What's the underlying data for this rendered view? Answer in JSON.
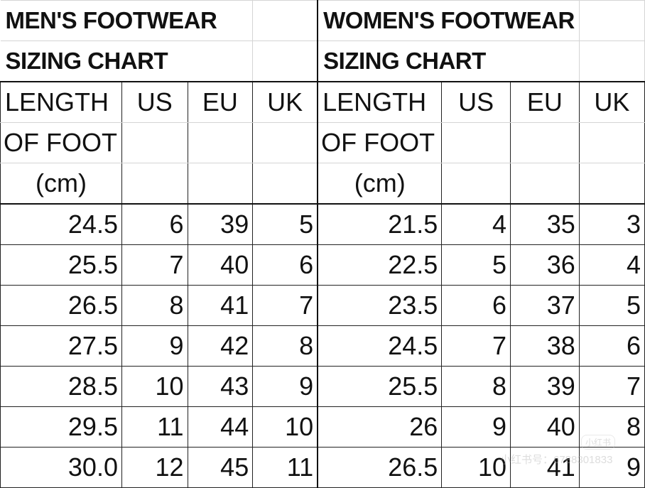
{
  "men": {
    "title_line1": "MEN'S FOOTWEAR",
    "title_line2": "SIZING CHART",
    "headers": {
      "length_line1": "LENGTH",
      "length_line2": "OF FOOT",
      "length_line3": "(cm)",
      "us": "US",
      "eu": "EU",
      "uk": "UK"
    },
    "rows": [
      [
        "24.5",
        "6",
        "39",
        "5"
      ],
      [
        "25.5",
        "7",
        "40",
        "6"
      ],
      [
        "26.5",
        "8",
        "41",
        "7"
      ],
      [
        "27.5",
        "9",
        "42",
        "8"
      ],
      [
        "28.5",
        "10",
        "43",
        "9"
      ],
      [
        "29.5",
        "11",
        "44",
        "10"
      ],
      [
        "30.0",
        "12",
        "45",
        "11"
      ]
    ]
  },
  "women": {
    "title_line1": "WOMEN'S FOOTWEAR",
    "title_line2": "SIZING CHART",
    "headers": {
      "length_line1": "LENGTH",
      "length_line2": "OF FOOT",
      "length_line3": "(cm)",
      "us": "US",
      "eu": "EU",
      "uk": "UK"
    },
    "rows": [
      [
        "21.5",
        "4",
        "35",
        "3"
      ],
      [
        "22.5",
        "5",
        "36",
        "4"
      ],
      [
        "23.5",
        "6",
        "37",
        "5"
      ],
      [
        "24.5",
        "7",
        "38",
        "6"
      ],
      [
        "25.5",
        "8",
        "39",
        "7"
      ],
      [
        "26",
        "9",
        "40",
        "8"
      ],
      [
        "26.5",
        "10",
        "41",
        "9"
      ]
    ]
  },
  "watermark": {
    "logo": "小红书",
    "id": "小红书号：6788301833"
  }
}
